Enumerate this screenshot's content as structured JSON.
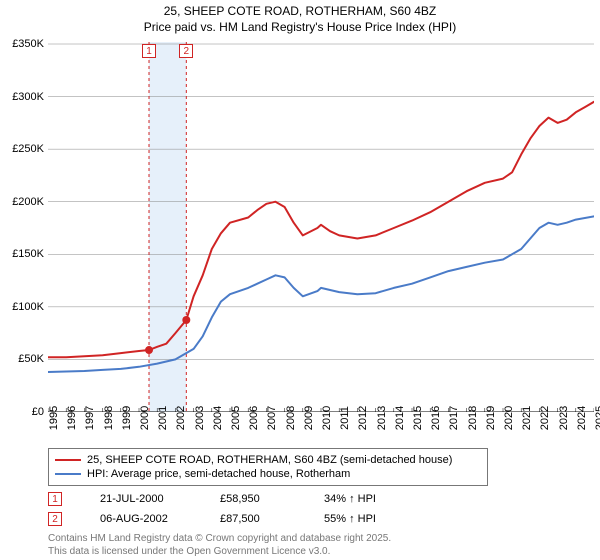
{
  "title_line1": "25, SHEEP COTE ROAD, ROTHERHAM, S60 4BZ",
  "title_line2": "Price paid vs. HM Land Registry's House Price Index (HPI)",
  "chart": {
    "type": "line",
    "background_color": "#ffffff",
    "grid_color": "#888888",
    "ylim": [
      0,
      350000
    ],
    "ytick_step": 50000,
    "ytick_labels": [
      "£0",
      "£50K",
      "£100K",
      "£150K",
      "£200K",
      "£250K",
      "£300K",
      "£350K"
    ],
    "xlim": [
      1995,
      2025
    ],
    "xticks": [
      1995,
      1996,
      1997,
      1998,
      1999,
      2000,
      2001,
      2002,
      2003,
      2004,
      2005,
      2006,
      2007,
      2008,
      2009,
      2010,
      2011,
      2012,
      2013,
      2014,
      2015,
      2016,
      2017,
      2018,
      2019,
      2020,
      2021,
      2022,
      2023,
      2024,
      2025
    ],
    "highlight_band": {
      "from": 2000.55,
      "to": 2002.6,
      "fill": "#e6f0fa"
    },
    "marker_lines": [
      {
        "x": 2000.55,
        "color": "#d02424",
        "dash": "3,3"
      },
      {
        "x": 2002.6,
        "color": "#d02424",
        "dash": "3,3"
      }
    ],
    "series": [
      {
        "name": "price_paid",
        "label": "25, SHEEP COTE ROAD, ROTHERHAM, S60 4BZ (semi-detached house)",
        "color": "#d02424",
        "line_width": 2,
        "data": [
          [
            1995,
            52000
          ],
          [
            1996,
            52000
          ],
          [
            1997,
            53000
          ],
          [
            1998,
            54000
          ],
          [
            1999,
            56000
          ],
          [
            2000,
            58000
          ],
          [
            2000.55,
            58950
          ],
          [
            2001,
            62000
          ],
          [
            2001.5,
            65000
          ],
          [
            2002,
            75000
          ],
          [
            2002.6,
            87500
          ],
          [
            2003,
            110000
          ],
          [
            2003.5,
            130000
          ],
          [
            2004,
            155000
          ],
          [
            2004.5,
            170000
          ],
          [
            2005,
            180000
          ],
          [
            2006,
            185000
          ],
          [
            2006.5,
            192000
          ],
          [
            2007,
            198000
          ],
          [
            2007.5,
            200000
          ],
          [
            2008,
            195000
          ],
          [
            2008.5,
            180000
          ],
          [
            2009,
            168000
          ],
          [
            2009.8,
            175000
          ],
          [
            2010,
            178000
          ],
          [
            2010.5,
            172000
          ],
          [
            2011,
            168000
          ],
          [
            2012,
            165000
          ],
          [
            2013,
            168000
          ],
          [
            2014,
            175000
          ],
          [
            2015,
            182000
          ],
          [
            2016,
            190000
          ],
          [
            2017,
            200000
          ],
          [
            2018,
            210000
          ],
          [
            2019,
            218000
          ],
          [
            2020,
            222000
          ],
          [
            2020.5,
            228000
          ],
          [
            2021,
            245000
          ],
          [
            2021.5,
            260000
          ],
          [
            2022,
            272000
          ],
          [
            2022.5,
            280000
          ],
          [
            2023,
            275000
          ],
          [
            2023.5,
            278000
          ],
          [
            2024,
            285000
          ],
          [
            2024.5,
            290000
          ],
          [
            2025,
            295000
          ]
        ]
      },
      {
        "name": "hpi",
        "label": "HPI: Average price, semi-detached house, Rotherham",
        "color": "#4a7bc8",
        "line_width": 2,
        "data": [
          [
            1995,
            38000
          ],
          [
            1996,
            38500
          ],
          [
            1997,
            39000
          ],
          [
            1998,
            40000
          ],
          [
            1999,
            41000
          ],
          [
            2000,
            43000
          ],
          [
            2001,
            46000
          ],
          [
            2002,
            50000
          ],
          [
            2003,
            60000
          ],
          [
            2003.5,
            72000
          ],
          [
            2004,
            90000
          ],
          [
            2004.5,
            105000
          ],
          [
            2005,
            112000
          ],
          [
            2006,
            118000
          ],
          [
            2006.5,
            122000
          ],
          [
            2007,
            126000
          ],
          [
            2007.5,
            130000
          ],
          [
            2008,
            128000
          ],
          [
            2008.5,
            118000
          ],
          [
            2009,
            110000
          ],
          [
            2009.8,
            115000
          ],
          [
            2010,
            118000
          ],
          [
            2011,
            114000
          ],
          [
            2012,
            112000
          ],
          [
            2013,
            113000
          ],
          [
            2014,
            118000
          ],
          [
            2015,
            122000
          ],
          [
            2016,
            128000
          ],
          [
            2017,
            134000
          ],
          [
            2018,
            138000
          ],
          [
            2019,
            142000
          ],
          [
            2020,
            145000
          ],
          [
            2021,
            155000
          ],
          [
            2021.5,
            165000
          ],
          [
            2022,
            175000
          ],
          [
            2022.5,
            180000
          ],
          [
            2023,
            178000
          ],
          [
            2023.5,
            180000
          ],
          [
            2024,
            183000
          ],
          [
            2025,
            186000
          ]
        ]
      }
    ],
    "sale_markers": [
      {
        "num": "1",
        "x": 2000.55,
        "y": 58950,
        "color": "#d02424"
      },
      {
        "num": "2",
        "x": 2002.6,
        "y": 87500,
        "color": "#d02424"
      }
    ]
  },
  "legend": {
    "series": [
      {
        "color": "#d02424",
        "label": "25, SHEEP COTE ROAD, ROTHERHAM, S60 4BZ (semi-detached house)"
      },
      {
        "color": "#4a7bc8",
        "label": "HPI: Average price, semi-detached house, Rotherham"
      }
    ]
  },
  "sales": [
    {
      "num": "1",
      "color": "#d02424",
      "date": "21-JUL-2000",
      "price": "£58,950",
      "pct": "34% ↑ HPI"
    },
    {
      "num": "2",
      "color": "#d02424",
      "date": "06-AUG-2002",
      "price": "£87,500",
      "pct": "55% ↑ HPI"
    }
  ],
  "footer_line1": "Contains HM Land Registry data © Crown copyright and database right 2025.",
  "footer_line2": "This data is licensed under the Open Government Licence v3.0."
}
